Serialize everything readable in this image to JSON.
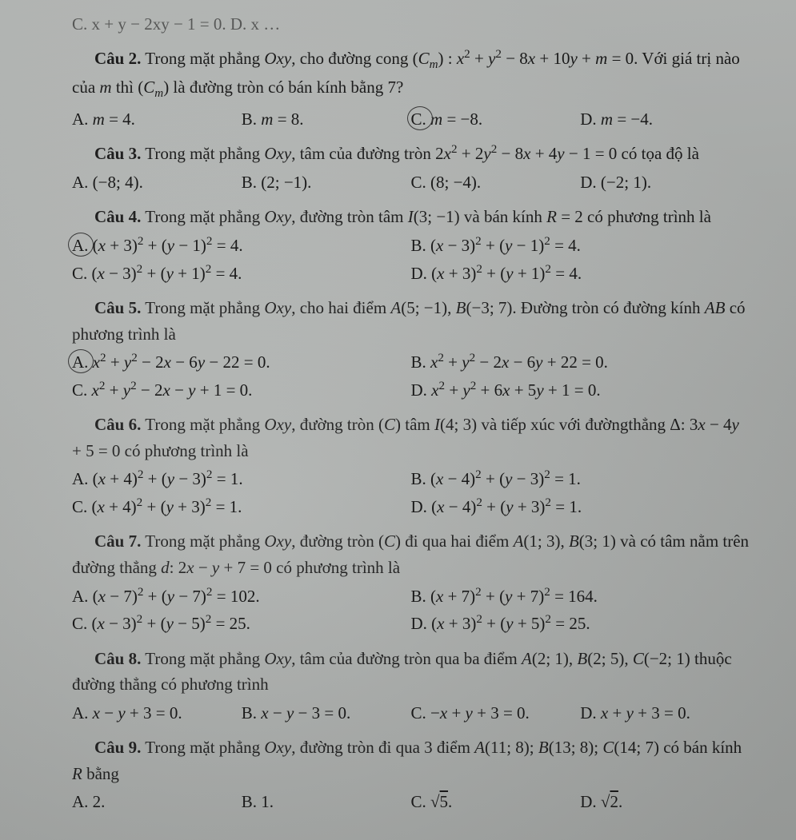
{
  "cutoff": "C. x + y − 2xy − 1 = 0.                                         D. x …",
  "questions": [
    {
      "id": "q2",
      "heading": "<b>Câu 2.</b> Trong mặt phẳng <span class='i'>Oxy</span>, cho đường cong (<span class='i'>C<sub>m</sub></span>) : <span class='i'>x</span><sup>2</sup> + <span class='i'>y</span><sup>2</sup> − 8<span class='i'>x</span> + 10<span class='i'>y</span> + <span class='i'>m</span> = 0. Với giá trị nào của <span class='i'>m</span> thì (<span class='i'>C<sub>m</sub></span>) là đường tròn có bán kính bằng 7?",
      "cols": "four",
      "circled": 2,
      "opts": [
        "A. <span class='i'>m</span> = 4.",
        "B. <span class='i'>m</span> = 8.",
        "C. <span class='i'>m</span> = −8.",
        "D. <span class='i'>m</span> = −4."
      ]
    },
    {
      "id": "q3",
      "heading": "<b>Câu 3.</b> Trong mặt phẳng <span class='i'>Oxy</span>, tâm của đường tròn 2<span class='i'>x</span><sup>2</sup> + 2<span class='i'>y</span><sup>2</sup> − 8<span class='i'>x</span> + 4<span class='i'>y</span> − 1 = 0 có tọa độ là",
      "cols": "four",
      "circled": -1,
      "opts": [
        "A. (−8; 4).",
        "B. (2; −1).",
        "C. (8; −4).",
        "D. (−2; 1)."
      ]
    },
    {
      "id": "q4",
      "heading": "<b>Câu 4.</b> Trong mặt phẳng <span class='i'>Oxy</span>, đường tròn tâm <span class='i'>I</span>(3; −1) và bán kính <span class='i'>R</span> = 2 có phương trình là",
      "cols": "two",
      "circled": 0,
      "opts": [
        "A. (<span class='i'>x</span> + 3)<sup>2</sup> + (<span class='i'>y</span> − 1)<sup>2</sup> = 4.",
        "B. (<span class='i'>x</span> − 3)<sup>2</sup> + (<span class='i'>y</span> − 1)<sup>2</sup> = 4.",
        "C. (<span class='i'>x</span> − 3)<sup>2</sup> + (<span class='i'>y</span> + 1)<sup>2</sup> = 4.",
        "D. (<span class='i'>x</span> + 3)<sup>2</sup> + (<span class='i'>y</span> + 1)<sup>2</sup> = 4."
      ]
    },
    {
      "id": "q5",
      "heading": "<b>Câu 5.</b> Trong mặt phẳng <span class='i'>Oxy</span>, cho hai điểm <span class='i'>A</span>(5; −1), <span class='i'>B</span>(−3; 7). Đường tròn có đường kính <span class='i'>AB</span> có phương trình là",
      "cols": "two",
      "circled": 0,
      "opts": [
        "A. <span class='i'>x</span><sup>2</sup> + <span class='i'>y</span><sup>2</sup> − 2<span class='i'>x</span> − 6<span class='i'>y</span> − 22 = 0.",
        "B. <span class='i'>x</span><sup>2</sup> + <span class='i'>y</span><sup>2</sup> − 2<span class='i'>x</span> − 6<span class='i'>y</span> + 22 = 0.",
        "C. <span class='i'>x</span><sup>2</sup> + <span class='i'>y</span><sup>2</sup> − 2<span class='i'>x</span> − <span class='i'>y</span> + 1 = 0.",
        "D. <span class='i'>x</span><sup>2</sup> + <span class='i'>y</span><sup>2</sup> + 6<span class='i'>x</span> + 5<span class='i'>y</span> + 1 = 0."
      ]
    },
    {
      "id": "q6",
      "heading": "<b>Câu 6.</b> Trong mặt phẳng <span class='i'>Oxy</span>, đường tròn (<span class='i'>C</span>) tâm <span class='i'>I</span>(4; 3) và tiếp xúc với đườngthẳng Δ: 3<span class='i'>x</span> − 4<span class='i'>y</span> + 5 = 0 có phương trình là",
      "cols": "two",
      "circled": -1,
      "opts": [
        "A. (<span class='i'>x</span> + 4)<sup>2</sup> + (<span class='i'>y</span> − 3)<sup>2</sup> = 1.",
        "B. (<span class='i'>x</span> − 4)<sup>2</sup> + (<span class='i'>y</span> − 3)<sup>2</sup> = 1.",
        "C. (<span class='i'>x</span> + 4)<sup>2</sup> + (<span class='i'>y</span> + 3)<sup>2</sup> = 1.",
        "D. (<span class='i'>x</span> − 4)<sup>2</sup> + (<span class='i'>y</span> + 3)<sup>2</sup> = 1."
      ]
    },
    {
      "id": "q7",
      "heading": "<b>Câu 7.</b> Trong mặt phẳng <span class='i'>Oxy</span>, đường tròn (<span class='i'>C</span>) đi qua hai điểm <span class='i'>A</span>(1; 3), <span class='i'>B</span>(3; 1) và có tâm nằm trên đường thẳng <span class='i'>d</span>: 2<span class='i'>x</span> − <span class='i'>y</span> + 7 = 0 có phương trình là",
      "cols": "two",
      "circled": -1,
      "opts": [
        "A. (<span class='i'>x</span> − 7)<sup>2</sup> + (<span class='i'>y</span> − 7)<sup>2</sup> = 102.",
        "B. (<span class='i'>x</span> + 7)<sup>2</sup> + (<span class='i'>y</span> + 7)<sup>2</sup> = 164.",
        "C. (<span class='i'>x</span> − 3)<sup>2</sup> + (<span class='i'>y</span> − 5)<sup>2</sup> = 25.",
        "D. (<span class='i'>x</span> + 3)<sup>2</sup> + (<span class='i'>y</span> + 5)<sup>2</sup> = 25."
      ]
    },
    {
      "id": "q8",
      "heading": "<b>Câu 8.</b> Trong mặt phẳng <span class='i'>Oxy</span>, tâm của đường tròn qua ba điểm <span class='i'>A</span>(2; 1), <span class='i'>B</span>(2; 5), <span class='i'>C</span>(−2; 1) thuộc đường thẳng có phương trình",
      "cols": "four",
      "circled": -1,
      "opts": [
        "A. <span class='i'>x</span> − <span class='i'>y</span> + 3 = 0.",
        "B. <span class='i'>x</span> − <span class='i'>y</span> − 3 = 0.",
        "C. −<span class='i'>x</span> + <span class='i'>y</span> + 3 = 0.",
        "D. <span class='i'>x</span> + <span class='i'>y</span> + 3 = 0."
      ]
    },
    {
      "id": "q9",
      "heading": "<b>Câu 9.</b> Trong mặt phẳng <span class='i'>Oxy</span>, đường tròn đi qua 3 điểm <span class='i'>A</span>(11; 8); <span class='i'>B</span>(13; 8); <span class='i'>C</span>(14; 7) có bán kính <span class='i'>R</span> bằng",
      "cols": "four",
      "circled": -1,
      "opts": [
        "A. 2.",
        "B. 1.",
        "C. √<span class='sqrt'>5</span>.",
        "D. √<span class='sqrt'>2</span>."
      ]
    }
  ]
}
